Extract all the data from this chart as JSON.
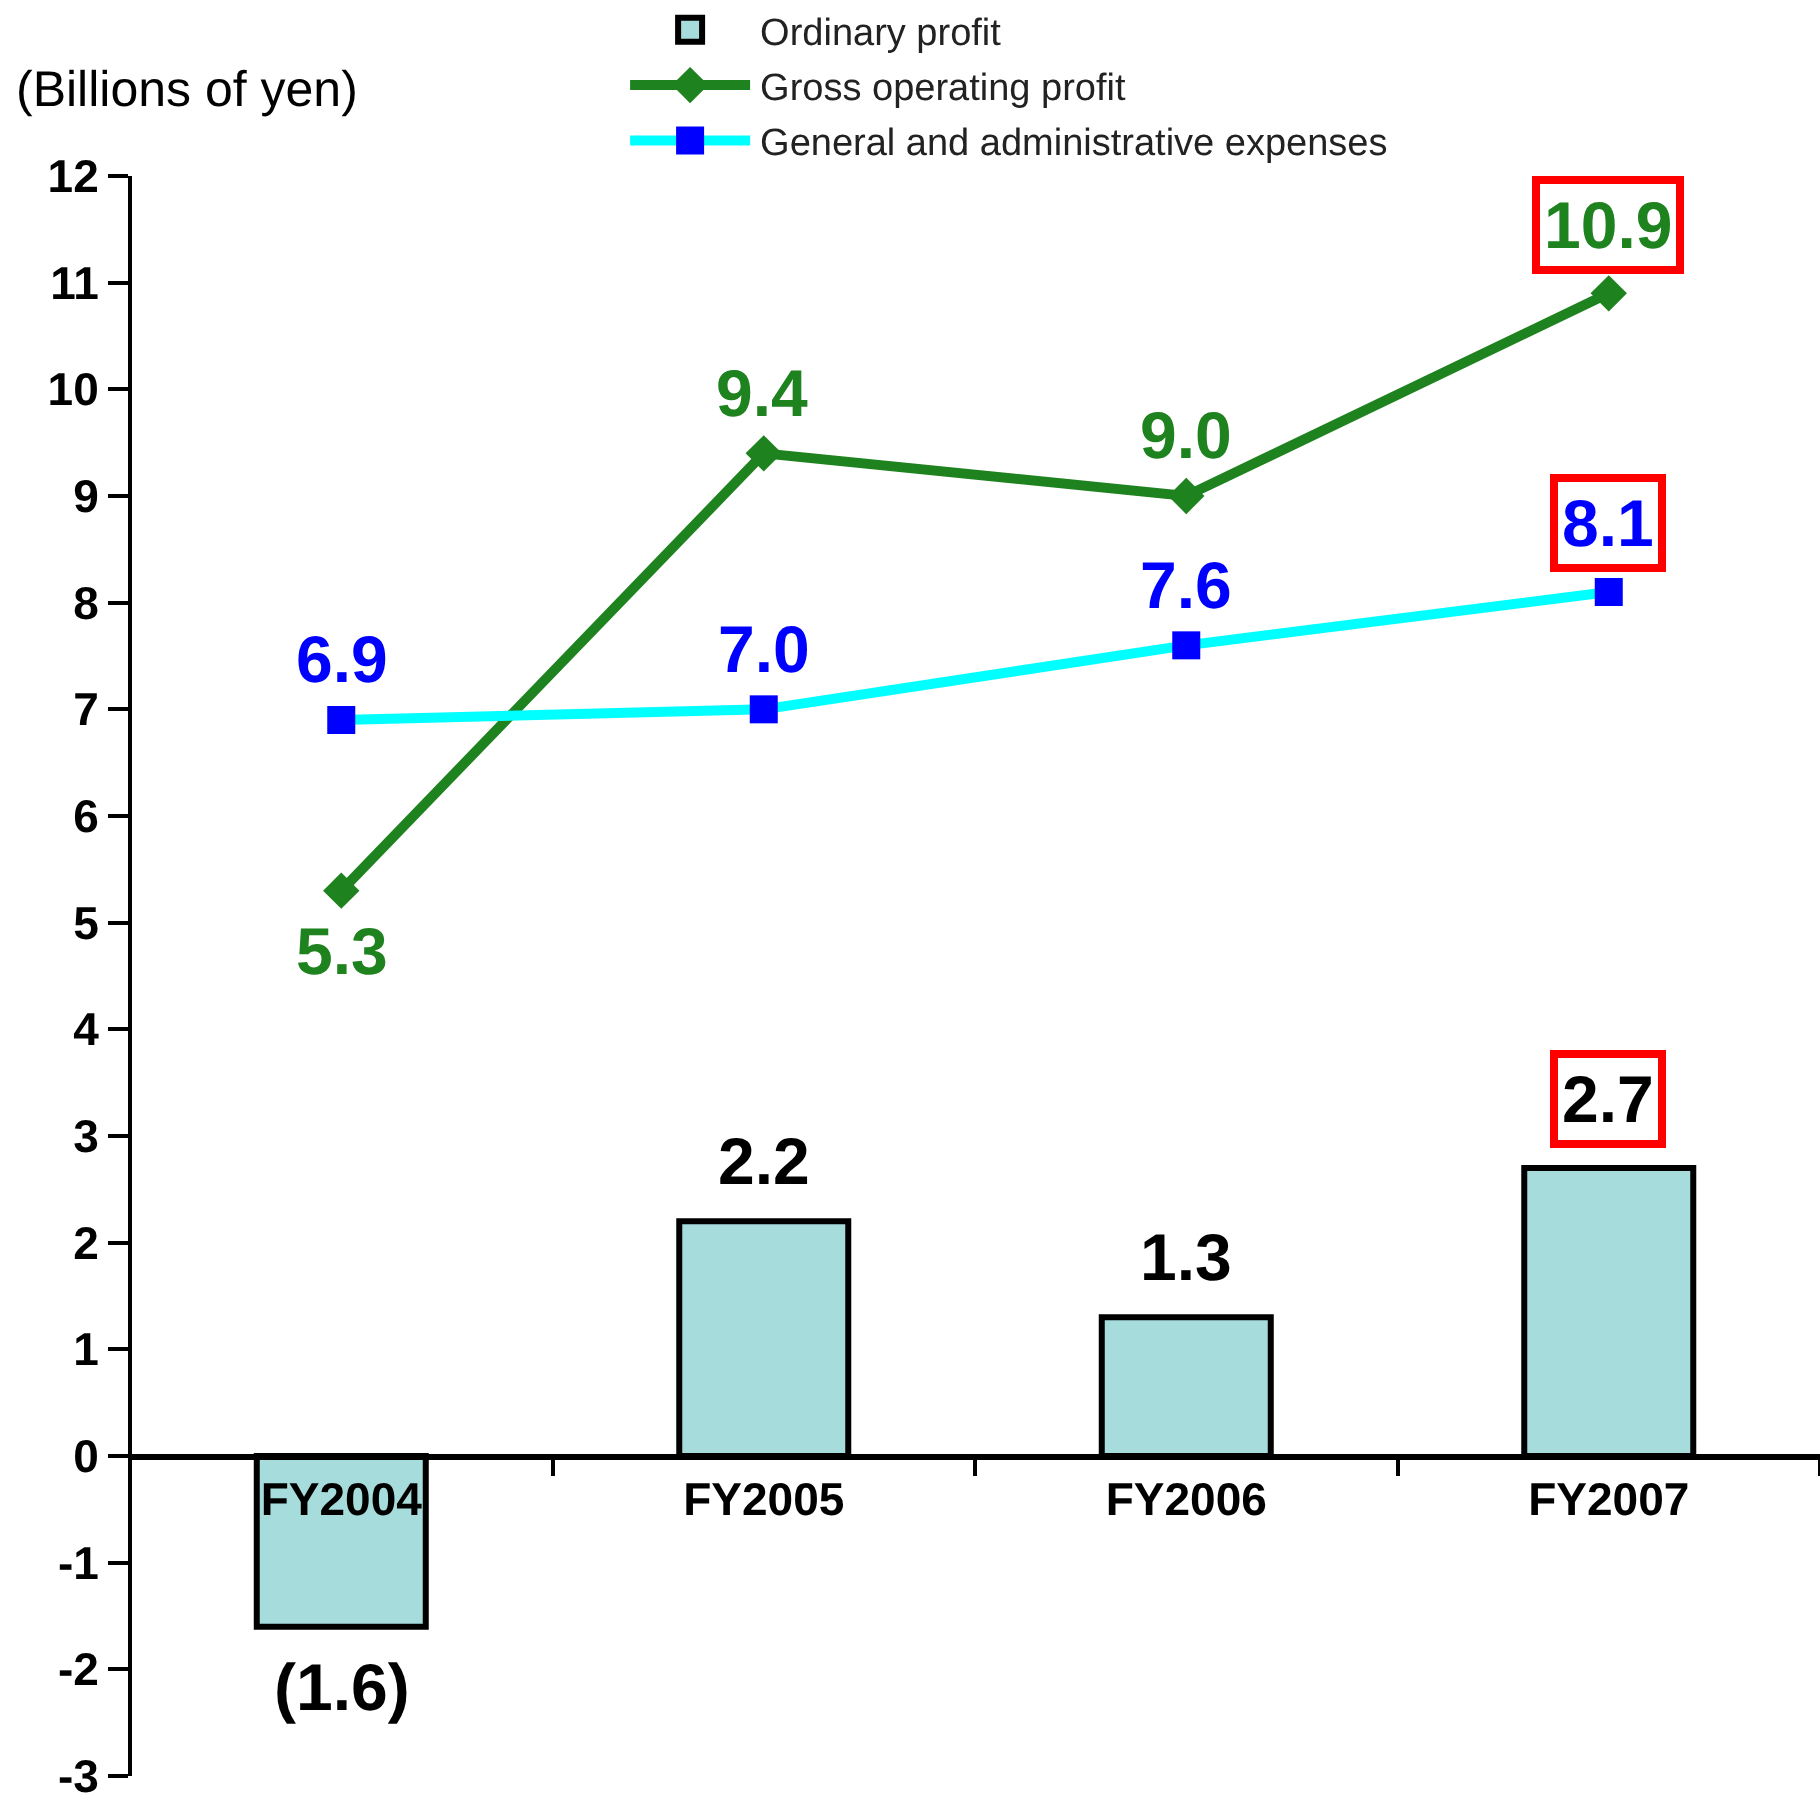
{
  "chart_data": {
    "type": "bar",
    "ylabel": "(Billions of yen)",
    "categories": [
      "FY2004",
      "FY2005",
      "FY2006",
      "FY2007"
    ],
    "series": [
      {
        "name": "Ordinary profit",
        "color": "#a6dcdc",
        "values": [
          -1.6,
          2.2,
          1.3,
          2.7
        ],
        "value_labels": [
          "(1.6)",
          "2.2",
          "1.3",
          "2.7"
        ]
      },
      {
        "name": "Gross operating profit",
        "type": "line",
        "color": "#1e821e",
        "marker": "diamond",
        "values": [
          5.3,
          9.4,
          9.0,
          10.9
        ],
        "value_labels": [
          "5.3",
          "9.4",
          "9.0",
          "10.9"
        ]
      },
      {
        "name": "General and administrative expenses",
        "type": "line",
        "color": "#00ffff",
        "colors": [
          "#0000ff",
          "#0000ff",
          "#0000ff",
          "#0000ff"
        ],
        "marker": "square",
        "values": [
          6.9,
          7.0,
          7.6,
          8.1
        ],
        "value_labels": [
          "6.9",
          "7.0",
          "7.6",
          "8.1"
        ]
      }
    ],
    "ylim": [
      -3,
      12
    ],
    "yticks": [
      -3,
      -2,
      -1,
      0,
      1,
      2,
      3,
      4,
      5,
      6,
      7,
      8,
      9,
      10,
      11,
      12
    ],
    "legend": "top"
  }
}
